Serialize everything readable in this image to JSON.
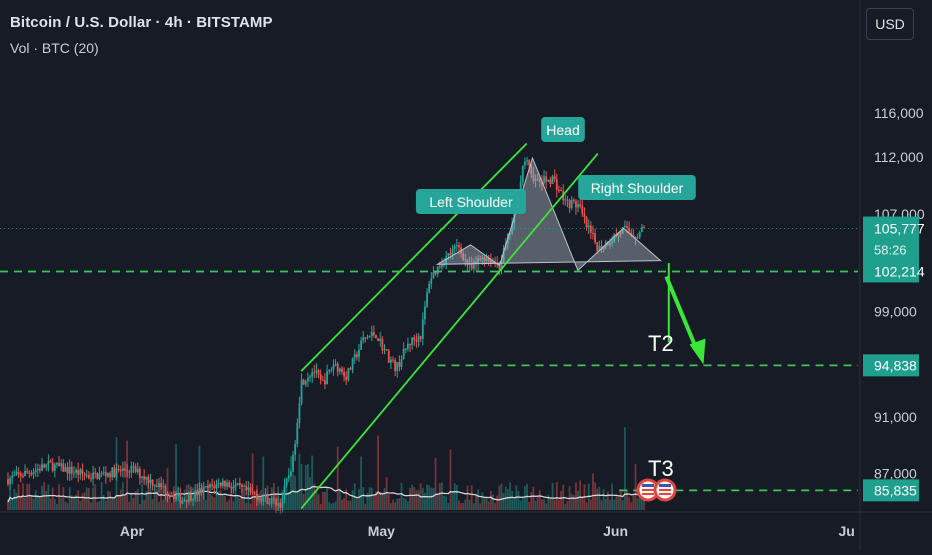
{
  "header": {
    "title": "Bitcoin / U.S. Dollar · 4h · BITSTAMP",
    "volume": "Vol · BTC (20)"
  },
  "currency_button": "USD",
  "colors": {
    "background": "#161b26",
    "up_candle": "#26a69a",
    "down_candle": "#ef5350",
    "channel": "#39e639",
    "level_line": "#39c65a",
    "label_green": "#26a69a",
    "price_badge": "#1f9f8d",
    "volume_ma": "#e8e8e8",
    "pattern_fill": "#a9b3bf"
  },
  "chart_data": {
    "type": "candlestick",
    "title": "Bitcoin / U.S. Dollar · 4h · BITSTAMP",
    "x_ticks": [
      "Apr",
      "May",
      "Jun",
      "Ju"
    ],
    "y_ticks": [
      "116,000",
      "112,000",
      "107,000",
      "99,000",
      "91,000",
      "87,000"
    ],
    "ylim": [
      84500,
      121000
    ],
    "y_scale": "log",
    "price_badges": [
      {
        "label": "105,777",
        "sub": "58:26",
        "value": 105777
      },
      {
        "label": "102,214",
        "value": 102214
      },
      {
        "label": "94,838",
        "value": 94838
      },
      {
        "label": "85,835",
        "value": 85835
      }
    ],
    "levels": [
      {
        "name": "neckline",
        "value": 102214
      },
      {
        "name": "T2",
        "value": 94838
      },
      {
        "name": "T3",
        "value": 85835
      }
    ],
    "pattern_labels": [
      "Left Shoulder",
      "Head",
      "Right Shoulder"
    ],
    "target_labels": [
      "T2",
      "T3"
    ],
    "price_path": [
      {
        "t": 0.0,
        "p": 86600
      },
      {
        "t": 0.05,
        "p": 87600
      },
      {
        "t": 0.1,
        "p": 86800
      },
      {
        "t": 0.15,
        "p": 87300
      },
      {
        "t": 0.21,
        "p": 85200
      },
      {
        "t": 0.26,
        "p": 86400
      },
      {
        "t": 0.3,
        "p": 85500
      },
      {
        "t": 0.33,
        "p": 84900
      },
      {
        "t": 0.345,
        "p": 87900
      },
      {
        "t": 0.355,
        "p": 93600
      },
      {
        "t": 0.37,
        "p": 94500
      },
      {
        "t": 0.38,
        "p": 93400
      },
      {
        "t": 0.395,
        "p": 95000
      },
      {
        "t": 0.41,
        "p": 94000
      },
      {
        "t": 0.43,
        "p": 96800
      },
      {
        "t": 0.445,
        "p": 97300
      },
      {
        "t": 0.46,
        "p": 95500
      },
      {
        "t": 0.47,
        "p": 94600
      },
      {
        "t": 0.485,
        "p": 96500
      },
      {
        "t": 0.5,
        "p": 97200
      },
      {
        "t": 0.51,
        "p": 101500
      },
      {
        "t": 0.525,
        "p": 103000
      },
      {
        "t": 0.545,
        "p": 104300
      },
      {
        "t": 0.56,
        "p": 102300
      },
      {
        "t": 0.575,
        "p": 103500
      },
      {
        "t": 0.595,
        "p": 102700
      },
      {
        "t": 0.61,
        "p": 106000
      },
      {
        "t": 0.625,
        "p": 111800
      },
      {
        "t": 0.64,
        "p": 109700
      },
      {
        "t": 0.66,
        "p": 110100
      },
      {
        "t": 0.675,
        "p": 108000
      },
      {
        "t": 0.69,
        "p": 107800
      },
      {
        "t": 0.7,
        "p": 106000
      },
      {
        "t": 0.715,
        "p": 104100
      },
      {
        "t": 0.73,
        "p": 104900
      },
      {
        "t": 0.745,
        "p": 105700
      },
      {
        "t": 0.76,
        "p": 105200
      },
      {
        "t": 0.77,
        "p": 105777
      }
    ]
  },
  "annotations": {
    "left_shoulder": "Left Shoulder",
    "head": "Head",
    "right_shoulder": "Right Shoulder",
    "t2": "T2",
    "t3": "T3"
  }
}
